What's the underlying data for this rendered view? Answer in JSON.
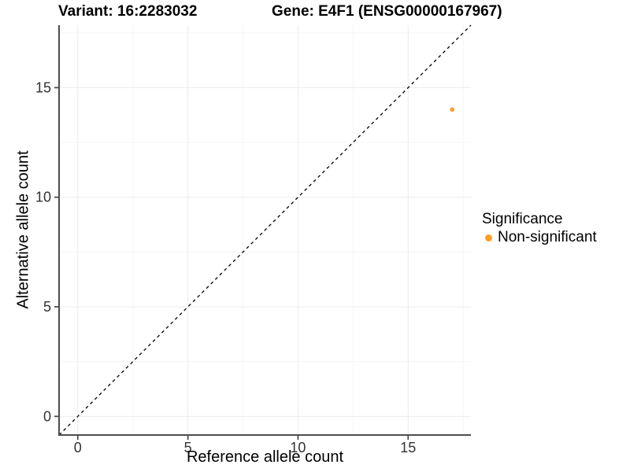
{
  "titles": {
    "variant": "Variant: 16:2283032",
    "gene": "Gene: E4F1 (ENSG00000167967)"
  },
  "axes": {
    "x": {
      "label": "Reference allele count",
      "ticks": [
        "0",
        "5",
        "10",
        "15"
      ]
    },
    "y": {
      "label": "Alternative allele count",
      "ticks": [
        "0",
        "5",
        "10",
        "15"
      ]
    }
  },
  "legend": {
    "title": "Significance",
    "items": [
      {
        "label": "Non-significant",
        "color": "#FF9E26",
        "marker": "dot"
      }
    ]
  },
  "chart_data": {
    "type": "scatter",
    "title": "Variant: 16:2283032 — Gene: E4F1 (ENSG00000167967)",
    "xlabel": "Reference allele count",
    "ylabel": "Alternative allele count",
    "xlim": [
      -0.85,
      17.85
    ],
    "ylim": [
      -0.85,
      17.85
    ],
    "x_major_ticks": [
      0,
      5,
      10,
      15
    ],
    "y_major_ticks": [
      0,
      5,
      10,
      15
    ],
    "x_minor_ticks": [
      2.5,
      7.5,
      12.5,
      17.5
    ],
    "y_minor_ticks": [
      2.5,
      7.5,
      12.5,
      17.5
    ],
    "grid": "major+minor",
    "legend_position": "right",
    "reference_line": {
      "kind": "identity y=x",
      "from": [
        -0.85,
        -0.85
      ],
      "to": [
        17.85,
        17.85
      ],
      "style": "dashed",
      "color": "#000000"
    },
    "series": [
      {
        "name": "Non-significant",
        "color": "#FF9E26",
        "point_radius": 2.8,
        "points": [
          [
            17,
            14
          ]
        ]
      }
    ]
  },
  "colors": {
    "background": "#FFFFFF",
    "axis_line": "#4D4D4D",
    "grid_major": "#EBEBEB",
    "grid_minor": "#F5F5F5",
    "tick_text": "#333333",
    "text": "#000000"
  }
}
